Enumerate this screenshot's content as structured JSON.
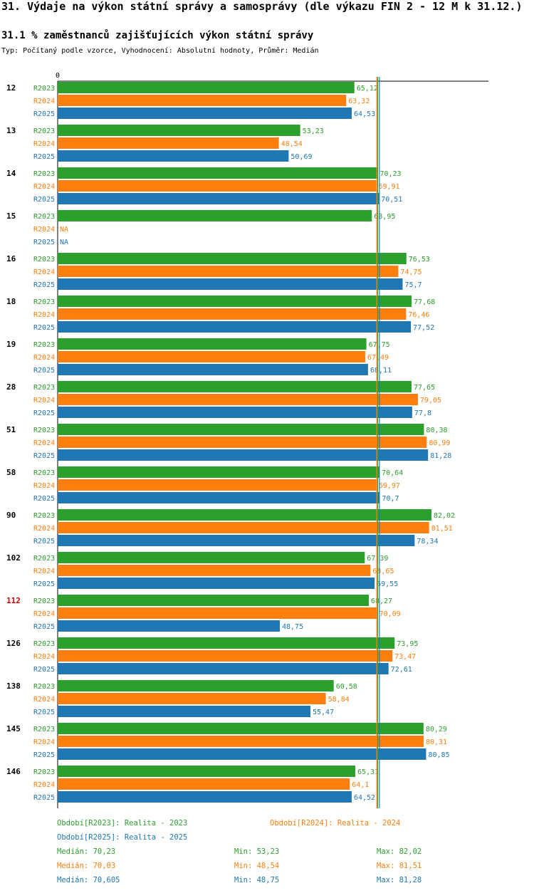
{
  "title": "31. Výdaje na výkon státní správy a samosprávy (dle výkazu FIN 2 - 12 M k 31.12.)",
  "subtitle": "31.1 % zaměstnanců zajišťujících výkon státní správy",
  "note": "Typ: Počítaný podle vzorce, Vyhodnocení: Absolutní hodnoty, Průměr: Medián",
  "colors": {
    "R2023": "#2ca02c",
    "R2024": "#ff7f0e",
    "R2025": "#1f77b4",
    "highlight": "#cc0000"
  },
  "chart_data": {
    "type": "bar",
    "orientation": "horizontal",
    "axis_zero_label": "0",
    "xlim": [
      0,
      84
    ],
    "categories": [
      "12",
      "13",
      "14",
      "15",
      "16",
      "18",
      "19",
      "28",
      "51",
      "58",
      "90",
      "102",
      "112",
      "126",
      "138",
      "145",
      "146"
    ],
    "highlighted_category": "112",
    "series": [
      {
        "name": "R2023",
        "values": [
          65.12,
          53.23,
          70.23,
          68.95,
          76.53,
          77.68,
          67.75,
          77.65,
          80.38,
          70.64,
          82.02,
          67.39,
          68.27,
          73.95,
          60.58,
          80.29,
          65.31
        ],
        "labels": [
          "65,12",
          "53,23",
          "70,23",
          "68,95",
          "76,53",
          "77,68",
          "67,75",
          "77,65",
          "80,38",
          "70,64",
          "82,02",
          "67,39",
          "68,27",
          "73,95",
          "60,58",
          "80,29",
          "65,31"
        ]
      },
      {
        "name": "R2024",
        "values": [
          63.32,
          48.54,
          69.91,
          null,
          74.75,
          76.46,
          67.49,
          79.05,
          80.99,
          69.97,
          81.51,
          68.65,
          70.09,
          73.47,
          58.84,
          80.31,
          64.1
        ],
        "labels": [
          "63,32",
          "48,54",
          "69,91",
          "NA",
          "74,75",
          "76,46",
          "67,49",
          "79,05",
          "80,99",
          "69,97",
          "81,51",
          "68,65",
          "70,09",
          "73,47",
          "58,84",
          "80,31",
          "64,1"
        ]
      },
      {
        "name": "R2025",
        "values": [
          64.53,
          50.69,
          70.51,
          null,
          75.7,
          77.52,
          68.11,
          77.8,
          81.28,
          70.7,
          78.34,
          69.55,
          48.75,
          72.61,
          55.47,
          80.85,
          64.52
        ],
        "labels": [
          "64,53",
          "50,69",
          "70,51",
          "NA",
          "75,7",
          "77,52",
          "68,11",
          "77,8",
          "81,28",
          "70,7",
          "78,34",
          "69,55",
          "48,75",
          "72,61",
          "55,47",
          "80,85",
          "64,52"
        ]
      }
    ],
    "median_lines": [
      {
        "series": "R2023",
        "value": 70.23
      },
      {
        "series": "R2024",
        "value": 70.03
      },
      {
        "series": "R2025",
        "value": 70.605
      }
    ]
  },
  "legend": {
    "periods": [
      "Období[R2023]: Realita - 2023",
      "Období[R2024]: Realita - 2024",
      "Období[R2025]: Realita - 2025"
    ],
    "stats": [
      {
        "median": "Medián: 70,23",
        "min": "Min: 53,23",
        "max": "Max: 82,02"
      },
      {
        "median": "Medián: 70,03",
        "min": "Min: 48,54",
        "max": "Max: 81,51"
      },
      {
        "median": "Medián: 70,605",
        "min": "Min: 48,75",
        "max": "Max: 81,28"
      }
    ]
  }
}
